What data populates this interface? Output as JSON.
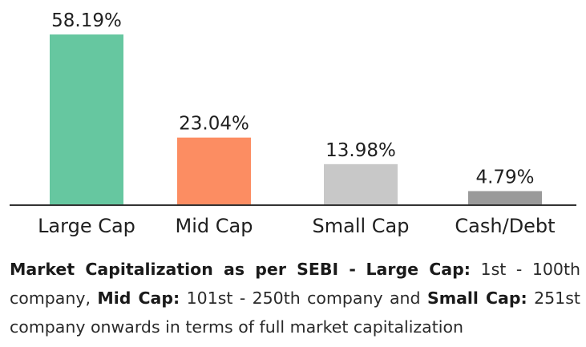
{
  "chart_data": {
    "type": "bar",
    "categories": [
      "Large Cap",
      "Mid Cap",
      "Small Cap",
      "Cash/Debt"
    ],
    "values": [
      58.19,
      23.04,
      13.98,
      4.79
    ],
    "value_labels": [
      "58.19%",
      "23.04%",
      "13.98%",
      "4.79%"
    ],
    "colors": [
      "#66c7a0",
      "#fc8d62",
      "#c8c8c8",
      "#9a9a9a"
    ],
    "ylim": [
      0,
      58.19
    ],
    "grid": false,
    "legend": "none"
  },
  "note": {
    "lead": "Market Capitalization as per SEBI -",
    "large_cap_label": "Large Cap:",
    "large_cap_text": "1st - 100th company,",
    "mid_cap_label": "Mid Cap:",
    "mid_cap_text": "101st - 250th company and",
    "small_cap_label": "Small Cap:",
    "small_cap_text": "251st company onwards in terms of full market capitalization"
  }
}
